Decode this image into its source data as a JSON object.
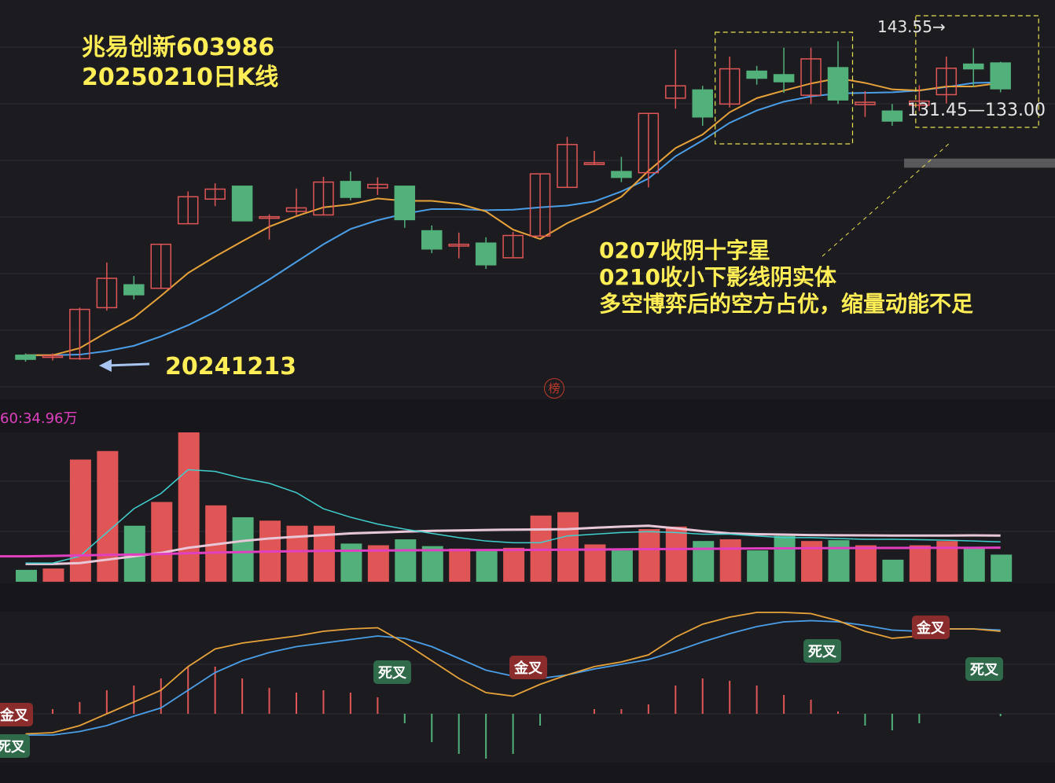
{
  "stock": {
    "name": "兆易创新603986",
    "date_line": "20250210日K线"
  },
  "arrow_date": "20241213",
  "notes": [
    "0207收阴十字星",
    "0210收小下影线阴实体",
    "多空博弈后的空方占优，缩量动能不足"
  ],
  "price_marks": {
    "high": "143.55→",
    "range": "131.45—133.00"
  },
  "volume_label": "60:34.96万",
  "watermark": "榜",
  "signals": {
    "golden": "金叉",
    "dead": "死叉"
  },
  "colors": {
    "up": "#e05555",
    "down": "#52b07a",
    "ma5": "#e8a23a",
    "ma10": "#4a9ee8",
    "vol_ma60": "#e040c0",
    "grid": "#2c2c33"
  },
  "chart_data": {
    "type": "candlestick",
    "title": "兆易创新603986 20250210日K线",
    "candles": [
      {
        "o": 99.5,
        "c": 98.8,
        "h": 99.8,
        "l": 98.4
      },
      {
        "o": 99.2,
        "c": 99.4,
        "h": 99.8,
        "l": 98.6
      },
      {
        "o": 98.9,
        "c": 107.3,
        "h": 107.6,
        "l": 98.7
      },
      {
        "o": 107.6,
        "c": 112.6,
        "h": 115.3,
        "l": 107.1
      },
      {
        "o": 111.5,
        "c": 109.8,
        "h": 113.0,
        "l": 109.0
      },
      {
        "o": 110.9,
        "c": 118.4,
        "h": 118.4,
        "l": 110.9
      },
      {
        "o": 121.9,
        "c": 126.5,
        "h": 127.4,
        "l": 121.9
      },
      {
        "o": 126.1,
        "c": 127.8,
        "h": 128.8,
        "l": 124.9
      },
      {
        "o": 128.3,
        "c": 122.4,
        "h": 128.3,
        "l": 122.4
      },
      {
        "o": 123.0,
        "c": 123.1,
        "h": 123.5,
        "l": 119.2
      },
      {
        "o": 124.0,
        "c": 124.6,
        "h": 127.9,
        "l": 123.4
      },
      {
        "o": 123.4,
        "c": 129.0,
        "h": 129.9,
        "l": 123.4
      },
      {
        "o": 129.1,
        "c": 126.4,
        "h": 130.8,
        "l": 125.9
      },
      {
        "o": 128.0,
        "c": 128.6,
        "h": 129.8,
        "l": 126.8
      },
      {
        "o": 128.3,
        "c": 122.6,
        "h": 128.3,
        "l": 121.2
      },
      {
        "o": 120.7,
        "c": 117.6,
        "h": 121.6,
        "l": 116.9
      },
      {
        "o": 118.1,
        "c": 118.4,
        "h": 120.4,
        "l": 116.0
      },
      {
        "o": 118.6,
        "c": 114.9,
        "h": 119.6,
        "l": 114.2
      },
      {
        "o": 116.1,
        "c": 119.9,
        "h": 120.5,
        "l": 116.1
      },
      {
        "o": 119.8,
        "c": 130.4,
        "h": 130.4,
        "l": 119.8
      },
      {
        "o": 128.1,
        "c": 135.4,
        "h": 136.7,
        "l": 128.1
      },
      {
        "o": 132.0,
        "c": 132.3,
        "h": 134.3,
        "l": 132.0
      },
      {
        "o": 130.8,
        "c": 129.8,
        "h": 133.3,
        "l": 129.0
      },
      {
        "o": 130.6,
        "c": 140.7,
        "h": 140.7,
        "l": 128.1
      },
      {
        "o": 143.3,
        "c": 145.4,
        "h": 151.6,
        "l": 141.5
      },
      {
        "o": 144.7,
        "c": 140.1,
        "h": 145.4,
        "l": 138.6
      },
      {
        "o": 142.3,
        "c": 148.3,
        "h": 150.4,
        "l": 141.7
      },
      {
        "o": 147.9,
        "c": 146.7,
        "h": 148.8,
        "l": 145.6
      },
      {
        "o": 147.3,
        "c": 146.1,
        "h": 151.9,
        "l": 144.2
      },
      {
        "o": 143.8,
        "c": 150.0,
        "h": 151.9,
        "l": 142.3
      },
      {
        "o": 148.5,
        "c": 143.0,
        "h": 153.0,
        "l": 142.3
      },
      {
        "o": 142.2,
        "c": 142.6,
        "h": 144.5,
        "l": 140.1
      },
      {
        "o": 141.1,
        "c": 139.4,
        "h": 142.3,
        "l": 138.6
      },
      {
        "o": 142.1,
        "c": 142.8,
        "h": 145.5,
        "l": 141.1
      },
      {
        "o": 143.9,
        "c": 148.4,
        "h": 150.4,
        "l": 142.4
      },
      {
        "o": 149.1,
        "c": 148.3,
        "h": 151.8,
        "l": 145.2
      },
      {
        "o": 149.3,
        "c": 144.9,
        "h": 149.5,
        "l": 144.3
      }
    ],
    "ma5": [
      99.5,
      99.5,
      100.7,
      103.4,
      105.9,
      109.6,
      113.5,
      116.3,
      118.9,
      121.4,
      123.2,
      124.7,
      125.2,
      126.2,
      125.8,
      125.8,
      125.3,
      124.0,
      120.9,
      119.3,
      122.0,
      124.1,
      126.5,
      130.9,
      134.8,
      137.1,
      140.9,
      143.3,
      144.6,
      145.8,
      146.7,
      145.9,
      144.8,
      144.6,
      145.3,
      145.3,
      145.9
    ],
    "ma10": [
      99.5,
      99.5,
      99.6,
      100.2,
      101.1,
      102.7,
      104.6,
      106.9,
      109.6,
      112.4,
      115.4,
      118.4,
      121.0,
      122.5,
      123.6,
      124.4,
      124.4,
      124.2,
      124.3,
      124.7,
      125.0,
      125.7,
      127.4,
      129.6,
      133.4,
      136.1,
      139.1,
      141.2,
      142.7,
      143.6,
      144.1,
      144.2,
      144.3,
      144.6,
      145.2,
      145.9,
      146.0
    ],
    "volume": [
      70,
      78,
      720,
      770,
      330,
      470,
      880,
      450,
      380,
      360,
      330,
      330,
      225,
      215,
      250,
      210,
      195,
      190,
      200,
      390,
      410,
      220,
      185,
      310,
      325,
      240,
      250,
      185,
      270,
      240,
      245,
      215,
      130,
      215,
      240,
      205,
      160
    ],
    "vol_ma5": [
      110,
      110,
      150,
      290,
      430,
      520,
      660,
      650,
      610,
      580,
      525,
      430,
      380,
      340,
      310,
      285,
      260,
      240,
      230,
      230,
      270,
      280,
      290,
      295,
      290,
      280,
      280,
      270,
      260,
      260,
      255,
      250,
      250,
      248,
      245,
      240,
      235
    ],
    "vol_ma10": [
      105,
      105,
      110,
      130,
      150,
      170,
      200,
      220,
      240,
      255,
      265,
      275,
      285,
      290,
      295,
      300,
      302,
      305,
      307,
      308,
      310,
      318,
      325,
      330,
      315,
      298,
      285,
      280,
      278,
      275,
      274,
      273,
      272,
      272,
      272,
      273,
      272
    ],
    "vol_ma60": [
      150,
      152,
      155,
      158,
      160,
      163,
      168,
      172,
      175,
      178,
      180,
      182,
      183,
      184,
      185,
      186,
      186,
      187,
      187,
      188,
      189,
      190,
      191,
      192,
      193,
      194,
      195,
      196,
      197,
      198,
      198,
      199,
      199,
      200,
      200,
      200,
      201
    ],
    "macd_dif": [
      -1.7,
      -1.6,
      -1.0,
      0.0,
      1.0,
      2.0,
      4.0,
      5.5,
      6.0,
      6.3,
      6.6,
      7.0,
      7.2,
      7.3,
      6.0,
      4.5,
      3.0,
      1.8,
      1.5,
      2.5,
      3.3,
      4.0,
      4.4,
      5.0,
      6.5,
      7.6,
      8.2,
      8.6,
      8.6,
      8.5,
      7.9,
      7.0,
      6.4,
      6.6,
      7.2,
      7.2,
      7.0
    ],
    "macd_dea": [
      -1.8,
      -1.8,
      -1.5,
      -1.0,
      -0.2,
      0.5,
      2.0,
      3.5,
      4.5,
      5.2,
      5.7,
      6.0,
      6.3,
      6.6,
      6.4,
      5.7,
      4.7,
      3.7,
      3.2,
      3.0,
      3.3,
      3.8,
      4.2,
      4.6,
      5.3,
      6.1,
      6.8,
      7.4,
      7.8,
      7.9,
      7.8,
      7.5,
      7.1,
      7.0,
      7.2,
      7.2,
      7.1
    ],
    "macd_signals": [
      {
        "index": 0,
        "kind": "golden"
      },
      {
        "index": 14,
        "kind": "dead"
      },
      {
        "index": 19,
        "kind": "golden"
      },
      {
        "index": 30,
        "kind": "dead"
      },
      {
        "index": 34,
        "kind": "golden"
      },
      {
        "index": 36,
        "kind": "dead"
      }
    ],
    "annotations": {
      "arrow_candle_index": 2,
      "box1_candle_range": [
        26,
        30
      ],
      "box2_candle_range": [
        33,
        36
      ],
      "level_range": [
        131.45,
        133.0
      ],
      "high_mark": 143.55
    }
  }
}
